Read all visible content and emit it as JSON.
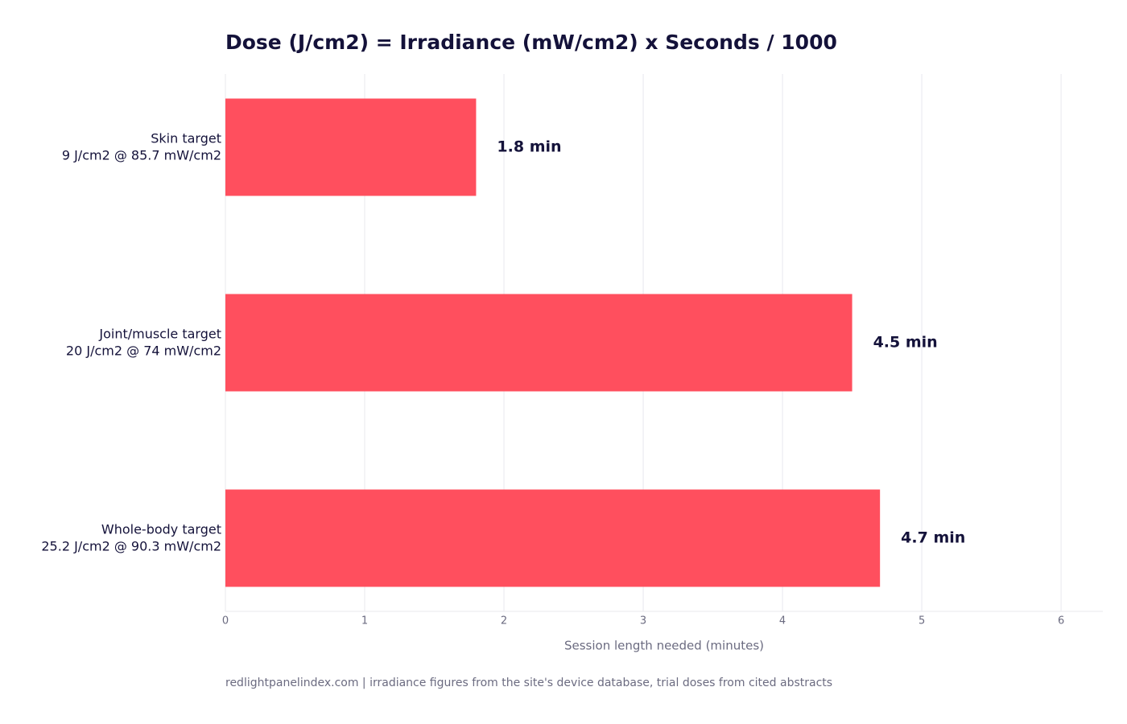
{
  "chart_data": {
    "type": "hbar",
    "title": "Dose (J/cm2) = Irradiance (mW/cm2) x Seconds / 1000",
    "categories": [
      [
        "Skin target",
        "9 J/cm2 @ 85.7 mW/cm2"
      ],
      [
        "Joint/muscle target",
        "20 J/cm2 @ 74 mW/cm2"
      ],
      [
        "Whole-body target",
        "25.2 J/cm2 @ 90.3 mW/cm2"
      ]
    ],
    "values": [
      1.8,
      4.5,
      4.7
    ],
    "value_labels": [
      "1.8 min",
      "4.5 min",
      "4.7 min"
    ],
    "color": "#ff4f5e",
    "xlim": [
      0,
      6.3
    ],
    "xticks": [
      0,
      1,
      2,
      3,
      4,
      5,
      6
    ],
    "xlabel": "Session length needed (minutes)",
    "grid": true,
    "source": "redlightpanelindex.com | irradiance figures from the site's device database, trial doses from cited abstracts"
  }
}
